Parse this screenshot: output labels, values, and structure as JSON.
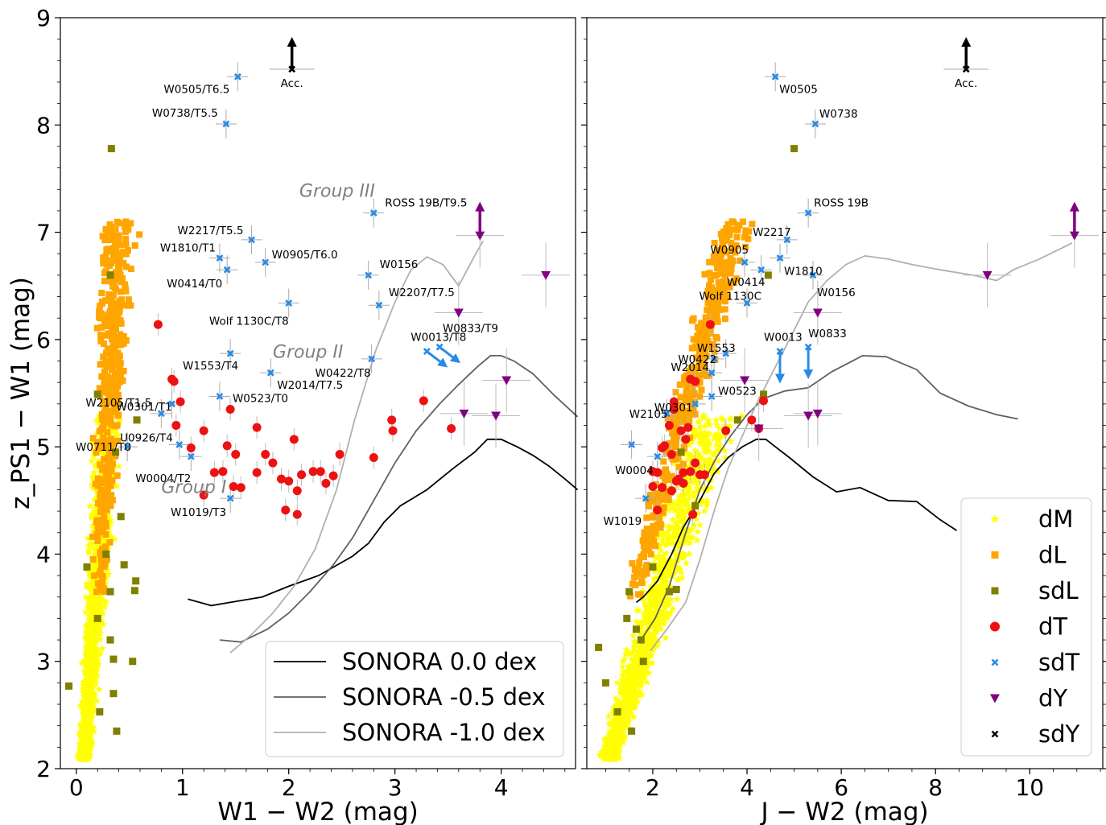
{
  "colors": {
    "dM": "#ffff00",
    "dL": "#ffa500",
    "sdL": "#808000",
    "dT": "#ee1111",
    "sdT": "#2a8be6",
    "dY": "#800080",
    "sdY": "#000000",
    "sonora_0": "#000000",
    "sonora_m05": "#606060",
    "sonora_m10": "#b0b0b0"
  },
  "chart_data": [
    {
      "type": "scatter",
      "panel": "left",
      "xlabel": "W1 − W2 (mag)",
      "ylabel": "z_PS1 − W1 (mag)",
      "xlim": [
        -0.15,
        4.7
      ],
      "ylim": [
        2,
        9
      ],
      "xticks": [
        "0",
        "1",
        "2",
        "3",
        "4"
      ],
      "yticks": [
        "2",
        "3",
        "4",
        "5",
        "6",
        "7",
        "8",
        "9"
      ],
      "group_labels": [
        {
          "text": "Group III",
          "x": 2.1,
          "y": 7.33
        },
        {
          "text": "Group II",
          "x": 1.85,
          "y": 5.83
        },
        {
          "text": "Group I",
          "x": 0.8,
          "y": 4.57
        }
      ],
      "series_sdT": [
        {
          "label": "W0505/T6.5",
          "x": 1.52,
          "y": 8.45
        },
        {
          "label": "W0738/T5.5",
          "x": 1.41,
          "y": 8.01
        },
        {
          "label": "ROSS 19B/T9.5",
          "x": 2.8,
          "y": 7.18
        },
        {
          "label": "W2217/T5.5",
          "x": 1.65,
          "y": 6.93
        },
        {
          "label": "W1810/T1",
          "x": 1.35,
          "y": 6.76
        },
        {
          "label": "W0905/T6.0",
          "x": 1.78,
          "y": 6.72
        },
        {
          "label": "W0414/T0",
          "x": 1.42,
          "y": 6.65
        },
        {
          "label": "W0156",
          "x": 2.75,
          "y": 6.6
        },
        {
          "label": "Wolf 1130C/T8",
          "x": 2.0,
          "y": 6.34
        },
        {
          "label": "W2207/T7.5",
          "x": 2.85,
          "y": 6.32
        },
        {
          "label": "W1553/T4",
          "x": 1.45,
          "y": 5.87
        },
        {
          "label": "W0422/T8",
          "x": 2.78,
          "y": 5.82
        },
        {
          "label": "W2014/T7.5",
          "x": 1.83,
          "y": 5.69
        },
        {
          "label": "W0523/T0",
          "x": 1.35,
          "y": 5.47
        },
        {
          "label": "W2105/T1.5",
          "x": 0.8,
          "y": 5.31
        },
        {
          "label": "W0301/T1",
          "x": 0.9,
          "y": 5.4
        },
        {
          "label": "W0711/T0",
          "x": 0.48,
          "y": 5.0
        },
        {
          "label": "U0926/T4",
          "x": 0.97,
          "y": 5.02
        },
        {
          "label": "W0004/T2",
          "x": 1.08,
          "y": 4.91
        },
        {
          "label": "W1019/T3",
          "x": 1.45,
          "y": 4.52
        }
      ],
      "upper_limits_sdT": [
        {
          "label": "W0013/T8",
          "x": 3.3,
          "y": 5.89
        },
        {
          "label": "",
          "x": 3.42,
          "y": 5.93
        }
      ],
      "series_dY": [
        {
          "label": "W0833/T9",
          "x": 3.6,
          "y": 6.25
        },
        {
          "x": 3.8,
          "y": 6.97
        },
        {
          "x": 4.42,
          "y": 6.6
        },
        {
          "x": 4.05,
          "y": 5.62
        },
        {
          "x": 3.65,
          "y": 5.31
        },
        {
          "x": 3.95,
          "y": 5.29
        }
      ],
      "series_sdY": [
        {
          "label": "Acc.",
          "x": 2.03,
          "y": 8.52
        }
      ],
      "series_dT": [
        {
          "x": 0.77,
          "y": 6.14
        },
        {
          "x": 0.9,
          "y": 5.63
        },
        {
          "x": 0.92,
          "y": 5.61
        },
        {
          "x": 0.98,
          "y": 5.42
        },
        {
          "x": 0.94,
          "y": 5.2
        },
        {
          "x": 1.08,
          "y": 4.99
        },
        {
          "x": 1.2,
          "y": 5.15
        },
        {
          "x": 1.3,
          "y": 4.76
        },
        {
          "x": 1.38,
          "y": 4.77
        },
        {
          "x": 1.42,
          "y": 5.01
        },
        {
          "x": 1.5,
          "y": 4.93
        },
        {
          "x": 1.48,
          "y": 4.63
        },
        {
          "x": 1.55,
          "y": 4.62
        },
        {
          "x": 1.7,
          "y": 5.18
        },
        {
          "x": 1.7,
          "y": 4.76
        },
        {
          "x": 1.78,
          "y": 4.93
        },
        {
          "x": 1.85,
          "y": 4.85
        },
        {
          "x": 1.93,
          "y": 4.7
        },
        {
          "x": 2.0,
          "y": 4.68
        },
        {
          "x": 2.08,
          "y": 4.59
        },
        {
          "x": 2.12,
          "y": 4.74
        },
        {
          "x": 2.05,
          "y": 5.07
        },
        {
          "x": 1.97,
          "y": 4.41
        },
        {
          "x": 2.08,
          "y": 4.37
        },
        {
          "x": 2.23,
          "y": 4.77
        },
        {
          "x": 2.3,
          "y": 4.77
        },
        {
          "x": 2.35,
          "y": 4.66
        },
        {
          "x": 2.42,
          "y": 4.73
        },
        {
          "x": 2.48,
          "y": 4.93
        },
        {
          "x": 1.45,
          "y": 5.35
        },
        {
          "x": 2.8,
          "y": 4.9
        },
        {
          "x": 2.97,
          "y": 5.25
        },
        {
          "x": 2.98,
          "y": 5.15
        },
        {
          "x": 3.27,
          "y": 5.43
        },
        {
          "x": 3.53,
          "y": 5.17
        },
        {
          "x": 1.2,
          "y": 4.55
        }
      ],
      "series_sdL": [
        {
          "x": 0.33,
          "y": 7.78
        },
        {
          "x": 0.32,
          "y": 6.6
        },
        {
          "x": 0.2,
          "y": 5.49
        },
        {
          "x": 0.57,
          "y": 5.25
        },
        {
          "x": 0.37,
          "y": 4.95
        },
        {
          "x": 0.42,
          "y": 4.35
        },
        {
          "x": 0.56,
          "y": 3.75
        },
        {
          "x": 0.55,
          "y": 3.66
        },
        {
          "x": 0.32,
          "y": 3.65
        },
        {
          "x": 0.2,
          "y": 3.4
        },
        {
          "x": 0.32,
          "y": 3.2
        },
        {
          "x": 0.35,
          "y": 3.02
        },
        {
          "x": 0.53,
          "y": 3.0
        },
        {
          "x": 0.35,
          "y": 2.7
        },
        {
          "x": 0.22,
          "y": 2.53
        },
        {
          "x": -0.07,
          "y": 2.77
        },
        {
          "x": 0.38,
          "y": 2.35
        },
        {
          "x": 0.1,
          "y": 3.88
        },
        {
          "x": 0.28,
          "y": 4.0
        },
        {
          "x": 0.45,
          "y": 3.9
        }
      ],
      "curves": [
        {
          "name": "SONORA 0.0 dex",
          "x": [
            1.05,
            1.27,
            1.45,
            1.75,
            2.0,
            2.28,
            2.6,
            2.75,
            2.9,
            3.05,
            3.3,
            3.55,
            3.75,
            3.87,
            4.0,
            4.15,
            4.3,
            4.45,
            4.6,
            4.72
          ],
          "y": [
            3.58,
            3.52,
            3.55,
            3.6,
            3.7,
            3.8,
            3.98,
            4.1,
            4.3,
            4.45,
            4.6,
            4.8,
            4.95,
            5.07,
            5.07,
            5.0,
            4.92,
            4.82,
            4.7,
            4.6
          ]
        },
        {
          "name": "SONORA -0.5 dex",
          "x": [
            1.35,
            1.55,
            1.8,
            2.0,
            2.2,
            2.42,
            2.6,
            2.8,
            3.0,
            3.2,
            3.42,
            3.6,
            3.78,
            3.9,
            4.0,
            4.12,
            4.3,
            4.5,
            4.72
          ],
          "y": [
            3.2,
            3.18,
            3.3,
            3.45,
            3.65,
            3.9,
            4.15,
            4.5,
            4.85,
            5.15,
            5.4,
            5.58,
            5.75,
            5.85,
            5.85,
            5.8,
            5.68,
            5.48,
            5.28
          ]
        },
        {
          "name": "SONORA -1.0 dex",
          "x": [
            1.45,
            1.65,
            1.85,
            2.05,
            2.25,
            2.45,
            2.62,
            2.82,
            3.0,
            3.15,
            3.3,
            3.45,
            3.6,
            3.75,
            3.83
          ],
          "y": [
            3.08,
            3.25,
            3.45,
            3.7,
            4.05,
            4.6,
            5.25,
            5.9,
            6.35,
            6.65,
            6.77,
            6.7,
            6.5,
            6.78,
            6.92
          ]
        }
      ],
      "legend": {
        "loc": "lower right",
        "entries": [
          "SONORA 0.0 dex",
          "SONORA -0.5 dex",
          "SONORA -1.0 dex"
        ]
      }
    },
    {
      "type": "scatter",
      "panel": "right",
      "xlabel": "J − W2 (mag)",
      "ylabel": "",
      "xlim": [
        0.6,
        11.55
      ],
      "ylim": [
        2,
        9
      ],
      "xticks": [
        "2",
        "4",
        "6",
        "8",
        "10"
      ],
      "series_sdT": [
        {
          "label": "W0505",
          "x": 4.6,
          "y": 8.45
        },
        {
          "label": "W0738",
          "x": 5.45,
          "y": 8.01
        },
        {
          "label": "ROSS 19B",
          "x": 5.3,
          "y": 7.18
        },
        {
          "label": "W2217",
          "x": 4.85,
          "y": 6.93
        },
        {
          "label": "W0905",
          "x": 3.95,
          "y": 6.72
        },
        {
          "label": "W1810",
          "x": 4.7,
          "y": 6.76
        },
        {
          "label": "W0414",
          "x": 4.3,
          "y": 6.65
        },
        {
          "label": "W0156",
          "x": 5.4,
          "y": 6.6
        },
        {
          "label": "Wolf 1130C",
          "x": 4.0,
          "y": 6.34
        },
        {
          "label": "W1553",
          "x": 3.55,
          "y": 5.87
        },
        {
          "label": "W0422",
          "x": 3.3,
          "y": 5.82
        },
        {
          "label": "W2014",
          "x": 3.25,
          "y": 5.69
        },
        {
          "label": "W0523",
          "x": 3.25,
          "y": 5.47
        },
        {
          "label": "W2105",
          "x": 2.3,
          "y": 5.31
        },
        {
          "label": "W0301",
          "x": 2.9,
          "y": 5.4
        },
        {
          "label": "W0004",
          "x": 2.1,
          "y": 4.91
        },
        {
          "label": "W1019",
          "x": 1.85,
          "y": 4.52
        },
        {
          "label": "",
          "x": 1.55,
          "y": 5.02
        }
      ],
      "upper_limits_sdT": [
        {
          "label": "W0013",
          "x": 4.7,
          "y": 5.89
        },
        {
          "label": "W0833",
          "x": 5.3,
          "y": 5.93
        }
      ],
      "series_dY": [
        {
          "x": 5.5,
          "y": 6.25
        },
        {
          "x": 9.1,
          "y": 6.6
        },
        {
          "x": 10.95,
          "y": 6.97
        },
        {
          "x": 3.95,
          "y": 5.62
        },
        {
          "x": 5.3,
          "y": 5.29
        },
        {
          "x": 5.5,
          "y": 5.31
        },
        {
          "x": 4.25,
          "y": 5.17
        }
      ],
      "series_sdY": [
        {
          "label": "Acc.",
          "x": 8.65,
          "y": 8.52
        }
      ],
      "series_dT": [
        {
          "x": 3.22,
          "y": 6.14
        },
        {
          "x": 2.8,
          "y": 5.63
        },
        {
          "x": 2.9,
          "y": 5.61
        },
        {
          "x": 2.45,
          "y": 5.42
        },
        {
          "x": 2.35,
          "y": 5.2
        },
        {
          "x": 2.2,
          "y": 4.99
        },
        {
          "x": 2.6,
          "y": 5.15
        },
        {
          "x": 2.1,
          "y": 4.76
        },
        {
          "x": 2.0,
          "y": 4.77
        },
        {
          "x": 2.25,
          "y": 5.01
        },
        {
          "x": 2.4,
          "y": 4.93
        },
        {
          "x": 2.0,
          "y": 4.63
        },
        {
          "x": 2.2,
          "y": 4.62
        },
        {
          "x": 2.75,
          "y": 5.18
        },
        {
          "x": 2.65,
          "y": 4.76
        },
        {
          "x": 2.9,
          "y": 4.85
        },
        {
          "x": 2.55,
          "y": 4.7
        },
        {
          "x": 2.5,
          "y": 4.68
        },
        {
          "x": 2.4,
          "y": 4.59
        },
        {
          "x": 3.0,
          "y": 4.74
        },
        {
          "x": 2.7,
          "y": 5.07
        },
        {
          "x": 2.1,
          "y": 4.41
        },
        {
          "x": 2.85,
          "y": 4.37
        },
        {
          "x": 3.1,
          "y": 4.74
        },
        {
          "x": 4.35,
          "y": 5.43
        },
        {
          "x": 4.1,
          "y": 5.25
        },
        {
          "x": 3.55,
          "y": 5.15
        },
        {
          "x": 4.25,
          "y": 5.17
        },
        {
          "x": 2.8,
          "y": 4.77
        },
        {
          "x": 2.45,
          "y": 5.35
        },
        {
          "x": 2.65,
          "y": 4.66
        }
      ],
      "series_sdL": [
        {
          "x": 5.0,
          "y": 7.78
        },
        {
          "x": 4.45,
          "y": 6.6
        },
        {
          "x": 4.35,
          "y": 5.49
        },
        {
          "x": 3.8,
          "y": 5.25
        },
        {
          "x": 2.6,
          "y": 4.95
        },
        {
          "x": 2.9,
          "y": 4.45
        },
        {
          "x": 2.35,
          "y": 3.65
        },
        {
          "x": 2.5,
          "y": 3.67
        },
        {
          "x": 1.5,
          "y": 3.65
        },
        {
          "x": 1.45,
          "y": 3.4
        },
        {
          "x": 1.65,
          "y": 3.3
        },
        {
          "x": 1.8,
          "y": 3.0
        },
        {
          "x": 1.0,
          "y": 2.8
        },
        {
          "x": 1.25,
          "y": 2.53
        },
        {
          "x": 1.55,
          "y": 2.35
        },
        {
          "x": 0.85,
          "y": 3.13
        },
        {
          "x": 1.75,
          "y": 3.2
        },
        {
          "x": 2.0,
          "y": 3.88
        }
      ],
      "curves": [
        {
          "name": "SONORA 0.0 dex",
          "x": [
            1.65,
            1.8,
            2.1,
            2.4,
            2.65,
            3.0,
            3.3,
            3.6,
            3.9,
            4.2,
            4.4,
            4.6,
            4.9,
            5.4,
            5.9,
            6.4,
            7.0,
            7.6,
            8.1,
            8.45
          ],
          "y": [
            3.55,
            3.6,
            3.75,
            4.0,
            4.25,
            4.5,
            4.75,
            4.9,
            5.0,
            5.07,
            5.07,
            5.0,
            4.9,
            4.72,
            4.58,
            4.62,
            4.5,
            4.49,
            4.32,
            4.22
          ]
        },
        {
          "name": "SONORA -0.5 dex",
          "x": [
            1.75,
            2.05,
            2.35,
            2.7,
            3.0,
            3.35,
            3.65,
            4.0,
            4.35,
            4.8,
            5.3,
            5.8,
            6.45,
            6.95,
            7.6,
            8.1,
            8.7,
            9.3,
            9.75
          ],
          "y": [
            3.2,
            3.4,
            3.7,
            4.2,
            4.6,
            4.9,
            5.1,
            5.3,
            5.45,
            5.52,
            5.55,
            5.7,
            5.85,
            5.84,
            5.72,
            5.5,
            5.38,
            5.3,
            5.26
          ]
        },
        {
          "name": "SONORA -1.0 dex",
          "x": [
            1.95,
            2.3,
            2.7,
            3.0,
            3.3,
            3.6,
            3.9,
            4.2,
            4.55,
            4.9,
            5.3,
            5.7,
            6.1,
            6.5,
            7.0,
            7.5,
            8.1,
            8.8,
            9.3,
            9.65,
            10.2,
            10.9
          ],
          "y": [
            3.1,
            3.3,
            3.55,
            3.95,
            4.4,
            4.8,
            5.1,
            5.4,
            5.7,
            6.0,
            6.35,
            6.55,
            6.7,
            6.78,
            6.75,
            6.7,
            6.65,
            6.6,
            6.55,
            6.65,
            6.75,
            6.9
          ]
        }
      ],
      "legend": {
        "loc": "lower right",
        "entries": [
          "dM",
          "dL",
          "sdL",
          "dT",
          "sdT",
          "dY",
          "sdY"
        ]
      }
    }
  ]
}
